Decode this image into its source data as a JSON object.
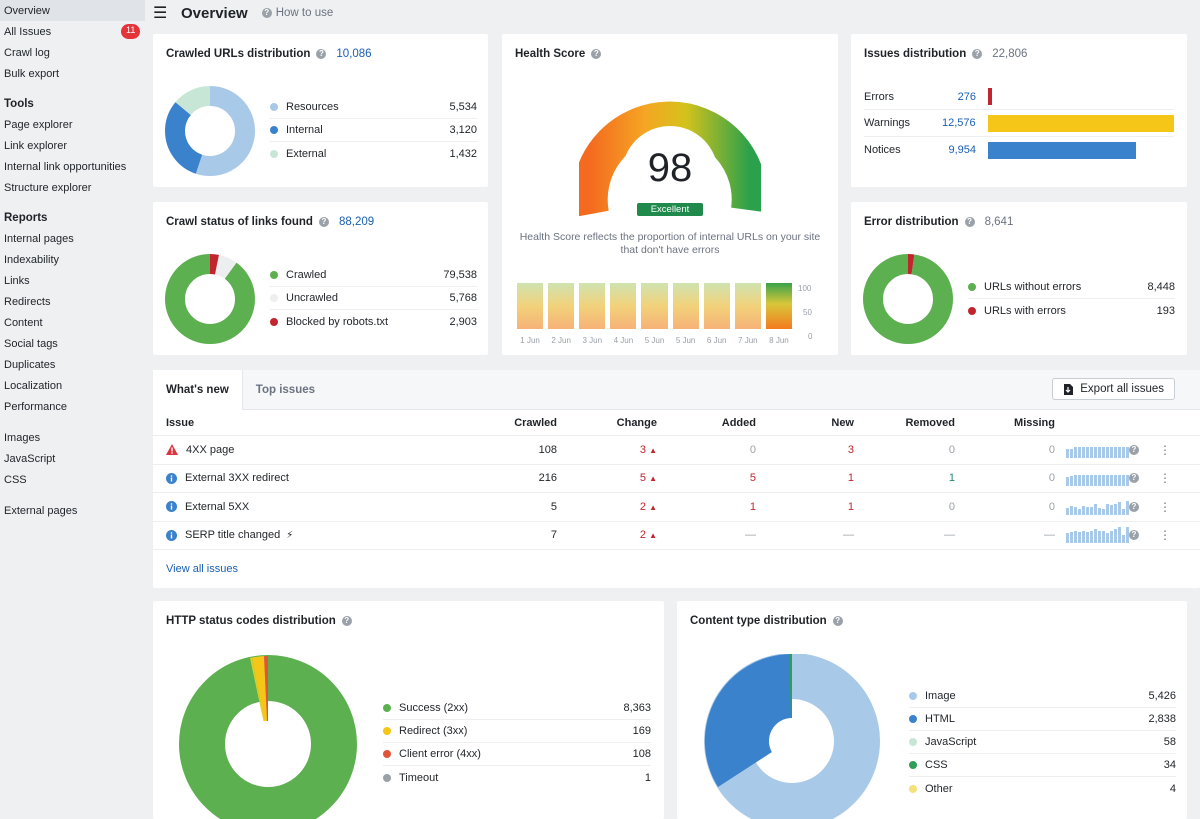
{
  "sidebar": {
    "top": [
      {
        "label": "Overview",
        "active": true
      },
      {
        "label": "All Issues",
        "badge": "11"
      },
      {
        "label": "Crawl log"
      },
      {
        "label": "Bulk export"
      }
    ],
    "tools_head": "Tools",
    "tools": [
      "Page explorer",
      "Link explorer",
      "Internal link opportunities",
      "Structure explorer"
    ],
    "reports_head": "Reports",
    "reports": [
      "Internal pages",
      "Indexability",
      "Links",
      "Redirects",
      "Content",
      "Social tags",
      "Duplicates",
      "Localization",
      "Performance"
    ],
    "media": [
      "Images",
      "JavaScript",
      "CSS"
    ],
    "external": [
      "External pages"
    ]
  },
  "header": {
    "title": "Overview",
    "how_to": "How to use"
  },
  "crawled_urls": {
    "title": "Crawled URLs distribution",
    "total": "10,086",
    "items": [
      {
        "label": "Resources",
        "value": "5,534",
        "color": "#a9c9e9"
      },
      {
        "label": "Internal",
        "value": "3,120",
        "color": "#3b82cc"
      },
      {
        "label": "External",
        "value": "1,432",
        "color": "#c8e6d6"
      }
    ]
  },
  "crawl_status": {
    "title": "Crawl status of links found",
    "total": "88,209",
    "items": [
      {
        "label": "Crawled",
        "value": "79,538",
        "color": "#5cb04f"
      },
      {
        "label": "Uncrawled",
        "value": "5,768",
        "color": "#eceef0"
      },
      {
        "label": "Blocked by robots.txt",
        "value": "2,903",
        "color": "#c1262e"
      }
    ]
  },
  "health": {
    "title": "Health Score",
    "score": "98",
    "badge": "Excellent",
    "description": "Health Score reflects the proportion of internal URLs on your site that don't have errors",
    "axis": [
      "100",
      "50",
      "0"
    ],
    "dates": [
      "1 Jun",
      "2 Jun",
      "3 Jun",
      "4 Jun",
      "5 Jun",
      "5 Jun",
      "6 Jun",
      "7 Jun",
      "8 Jun"
    ],
    "history": [
      98,
      98,
      98,
      98,
      98,
      98,
      98,
      98,
      98
    ]
  },
  "issues_distribution": {
    "title": "Issues distribution",
    "total": "22,806",
    "items": [
      {
        "label": "Errors",
        "value": "276",
        "num": 276,
        "color": "#c1262e"
      },
      {
        "label": "Warnings",
        "value": "12,576",
        "num": 12576,
        "color": "#f5c518"
      },
      {
        "label": "Notices",
        "value": "9,954",
        "num": 9954,
        "color": "#3b82cc"
      }
    ]
  },
  "error_distribution": {
    "title": "Error distribution",
    "total": "8,641",
    "items": [
      {
        "label": "URLs without errors",
        "value": "8,448",
        "color": "#5cb04f"
      },
      {
        "label": "URLs with errors",
        "value": "193",
        "color": "#c1262e"
      }
    ]
  },
  "issues_table": {
    "tabs": [
      "What's new",
      "Top issues"
    ],
    "export_label": "Export all issues",
    "columns": [
      "Issue",
      "Crawled",
      "Change",
      "Added",
      "New",
      "Removed",
      "Missing"
    ],
    "rows": [
      {
        "icon": "warning",
        "issue": "4XX page",
        "crawled": "108",
        "change": "3",
        "added": "0",
        "new": "3",
        "removed": "0",
        "missing": "0"
      },
      {
        "icon": "info",
        "issue": "External 3XX redirect",
        "crawled": "216",
        "change": "5",
        "added": "5",
        "new": "1",
        "removed": "1",
        "missing": "0"
      },
      {
        "icon": "info",
        "issue": "External 5XX",
        "crawled": "5",
        "change": "2",
        "added": "1",
        "new": "1",
        "removed": "0",
        "missing": "0"
      },
      {
        "icon": "info",
        "issue": "SERP title changed",
        "crawled": "7",
        "change": "2",
        "added": "—",
        "new": "—",
        "removed": "—",
        "missing": "—"
      }
    ],
    "view_all": "View all issues"
  },
  "http_status": {
    "title": "HTTP status codes distribution",
    "items": [
      {
        "label": "Success (2xx)",
        "value": "8,363",
        "color": "#5cb04f"
      },
      {
        "label": "Redirect (3xx)",
        "value": "169",
        "color": "#f5c518"
      },
      {
        "label": "Client error (4xx)",
        "value": "108",
        "color": "#e0553a"
      },
      {
        "label": "Timeout",
        "value": "1",
        "color": "#9aa1a9"
      }
    ]
  },
  "content_type": {
    "title": "Content type distribution",
    "items": [
      {
        "label": "Image",
        "value": "5,426",
        "color": "#a9c9e9"
      },
      {
        "label": "HTML",
        "value": "2,838",
        "color": "#3b82cc"
      },
      {
        "label": "JavaScript",
        "value": "58",
        "color": "#c8e6d6"
      },
      {
        "label": "CSS",
        "value": "34",
        "color": "#2f9e5a"
      },
      {
        "label": "Other",
        "value": "4",
        "color": "#f5e07a"
      }
    ]
  }
}
